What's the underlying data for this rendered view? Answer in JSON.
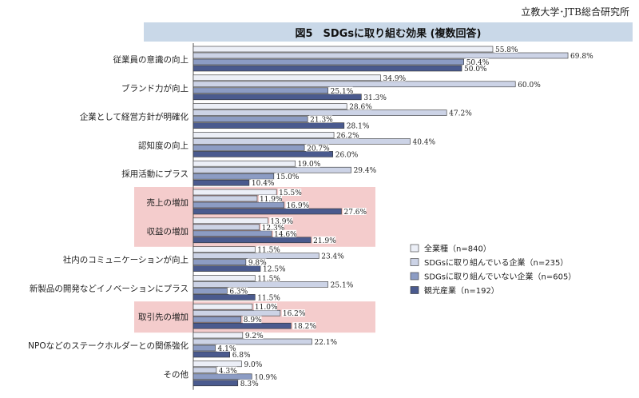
{
  "header": {
    "source": "立教大学･JTB総合研究所",
    "title": "図5　SDGsに取り組む効果 (複数回答)"
  },
  "colors": {
    "series": [
      "#eceff7",
      "#ccd3e6",
      "#8c9cc4",
      "#4a5a8e"
    ],
    "highlight": "#f4cccc",
    "bar_stroke": "#333333",
    "title_bg": "#c9d8e8"
  },
  "chart_data": {
    "type": "bar",
    "orientation": "horizontal",
    "categories": [
      "従業員の意識の向上",
      "ブランド力が向上",
      "企業として経営方針が明確化",
      "認知度の向上",
      "採用活動にプラス",
      "売上の増加",
      "収益の増加",
      "社内のコミュニケーションが向上",
      "新製品の開発などイノベーションにプラス",
      "取引先の増加",
      "NPOなどのステークホルダーとの関係強化",
      "その他"
    ],
    "highlighted_categories": [
      "売上の増加",
      "収益の増加",
      "取引先の増加"
    ],
    "series": [
      {
        "name": "全業種（n=840）",
        "values": [
          55.8,
          34.9,
          28.6,
          26.2,
          19.0,
          15.5,
          13.9,
          11.5,
          11.5,
          11.0,
          9.2,
          9.0
        ]
      },
      {
        "name": "SDGsに取り組んでいる企業（n=235）",
        "values": [
          69.8,
          60.0,
          47.2,
          40.4,
          29.4,
          11.9,
          12.3,
          23.4,
          25.1,
          16.2,
          22.1,
          4.3
        ]
      },
      {
        "name": "SDGsに取り組んでいない企業（n=605）",
        "values": [
          50.4,
          25.1,
          21.3,
          20.7,
          15.0,
          16.9,
          14.6,
          9.8,
          6.3,
          8.9,
          4.1,
          10.9
        ]
      },
      {
        "name": "観光産業（n=192）",
        "values": [
          50.0,
          31.3,
          28.1,
          26.0,
          10.4,
          27.6,
          21.9,
          12.5,
          11.5,
          18.2,
          6.8,
          8.3
        ]
      }
    ],
    "value_labels": [
      [
        "55.8%",
        "34.9%",
        "28.6%",
        "26.2%",
        "19.0%",
        "15.5%",
        "13.9%",
        "11.5%",
        "11.5%",
        "11.0%",
        "9.2%",
        "9.0%"
      ],
      [
        "69.8%",
        "60.0%",
        "47.2%",
        "40.4%",
        "29.4%",
        "11.9%",
        "12.3%",
        "23.4%",
        "25.1%",
        "16.2%",
        "22.1%",
        "4.3%"
      ],
      [
        "50.4%",
        "25.1%",
        "21.3%",
        "20.7%",
        "15.0%",
        "16.9%",
        "14.6%",
        "9.8%",
        "6.3%",
        "8.9%",
        "4.1%",
        "10.9%"
      ],
      [
        "50.0%",
        "31.3%",
        "28.1%",
        "26.0%",
        "10.4%",
        "27.6%",
        "21.9%",
        "12.5%",
        "11.5%",
        "18.2%",
        "6.8%",
        "8.3%"
      ]
    ],
    "xlim": [
      0,
      80
    ],
    "grid": false,
    "legend_position": "right"
  }
}
